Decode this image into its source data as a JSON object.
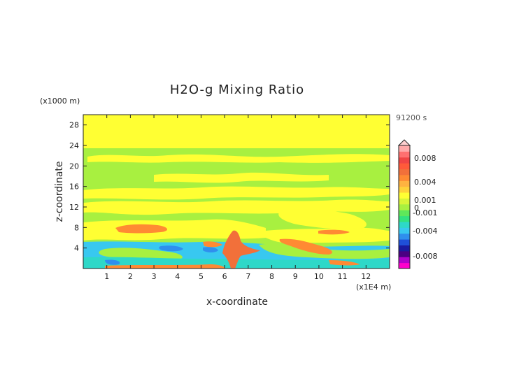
{
  "chart_data": {
    "type": "heatmap",
    "title": "H2O-g Mixing Ratio",
    "xlabel": "x-coordinate",
    "ylabel": "z-coordinate",
    "x_unit": "(x1E4 m)",
    "y_unit": "(x1000 m)",
    "time_label": "91200 s",
    "xlim": [
      0,
      13
    ],
    "ylim": [
      0,
      30
    ],
    "x_ticks": [
      1,
      2,
      3,
      4,
      5,
      6,
      7,
      8,
      9,
      10,
      11,
      12
    ],
    "y_ticks": [
      4,
      8,
      12,
      16,
      20,
      24,
      28
    ],
    "colorbar": {
      "labels": [
        "0.008",
        "0.004",
        "0.001",
        "0",
        "-0.001",
        "-0.004",
        "-0.008"
      ],
      "levels": [
        0.008,
        0.004,
        0.001,
        0,
        -0.001,
        -0.004,
        -0.008
      ],
      "colors": [
        "#ff00cc",
        "#b000cc",
        "#4b0082",
        "#1a1aa0",
        "#1f4fd8",
        "#2f8fee",
        "#38c8f0",
        "#2ed8c8",
        "#33e27f",
        "#5fe85a",
        "#a8f040",
        "#d8f538",
        "#ffff33",
        "#ffd23a",
        "#ffb340",
        "#ff8a33",
        "#f2703a",
        "#ff5a3a",
        "#f04545",
        "#ff7070",
        "#ffaaaa"
      ]
    },
    "field_summary": [
      {
        "region": "z 23-30",
        "value": "0 to 0.001 (yellow)"
      },
      {
        "region": "z 10-23",
        "value": "around 0 to -0.001 (green), yellow bands"
      },
      {
        "region": "z 6-9, x 1.5-3.5",
        "value": "0.001 to 0.004 (orange)"
      },
      {
        "region": "x 5.8-6.8, z 0-7.5",
        "value": "0.004 (orange-red plume)"
      },
      {
        "region": "x 8.5-10.5, z 2-6",
        "value": "0.002 to 0.004 (orange)"
      },
      {
        "region": "z 0-6",
        "value": "-0.001 to -0.004 (cyan/blue patches)"
      }
    ]
  }
}
